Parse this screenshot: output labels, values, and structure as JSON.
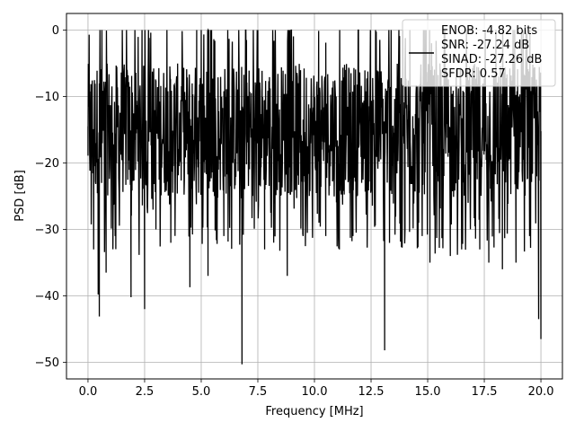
{
  "chart_data": {
    "type": "line",
    "title": "",
    "xlabel": "Frequency [MHz]",
    "ylabel": "PSD [dB]",
    "xlim": [
      -0.95,
      20.95
    ],
    "ylim": [
      -52.5,
      2.5
    ],
    "x_ticks": [
      0.0,
      2.5,
      5.0,
      7.5,
      10.0,
      12.5,
      15.0,
      17.5,
      20.0
    ],
    "x_tick_labels": [
      "0.0",
      "2.5",
      "5.0",
      "7.5",
      "10.0",
      "12.5",
      "15.0",
      "17.5",
      "20.0"
    ],
    "y_ticks": [
      0,
      -10,
      -20,
      -30,
      -40,
      -50
    ],
    "y_tick_labels": [
      "0",
      "−10",
      "−20",
      "−30",
      "−40",
      "−50"
    ],
    "grid": true,
    "legend_position": "top-right",
    "line_color": "#000000",
    "series": [
      {
        "name": "ENOB: -4.82 bits\nSNR: -27.24 dB\nSINAD: -27.26 dB\nSFDR: 0.57",
        "x_range": [
          0.0,
          20.0
        ],
        "typical_range": [
          -25,
          -5
        ],
        "values_approx_note_free": true,
        "x": [
          0.0,
          0.05,
          0.12,
          0.25,
          0.45,
          0.5,
          0.6,
          0.8,
          1.2,
          1.9,
          2.5,
          3.0,
          3.6,
          4.5,
          4.8,
          5.3,
          6.0,
          6.8,
          7.0,
          7.8,
          8.2,
          8.8,
          9.5,
          10.5,
          11.1,
          11.7,
          12.4,
          13.1,
          14.0,
          14.6,
          15.1,
          16.0,
          16.5,
          17.3,
          17.7,
          18.3,
          18.9,
          19.5,
          19.9,
          20.0
        ],
        "y": [
          -14.5,
          -0.7,
          -12.0,
          -33.0,
          -39.8,
          -43.1,
          -23.0,
          -36.5,
          -31.0,
          -40.2,
          -42.0,
          -30.0,
          -21.0,
          -38.7,
          0.0,
          -37.0,
          -31.0,
          -50.3,
          -1.5,
          -33.0,
          -32.0,
          -37.0,
          -31.0,
          -31.0,
          -33.0,
          -31.0,
          -20.0,
          -48.2,
          -30.0,
          -29.0,
          -35.0,
          -34.0,
          -33.0,
          -33.0,
          -35.0,
          -36.0,
          -35.0,
          -31.0,
          -43.5,
          -46.5
        ]
      }
    ]
  }
}
